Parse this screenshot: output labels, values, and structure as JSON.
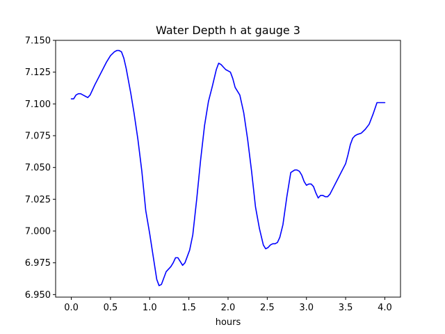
{
  "chart_data": {
    "type": "line",
    "title": "Water Depth h at gauge 3",
    "xlabel": "hours",
    "ylabel": "",
    "xlim": [
      -0.2,
      4.2
    ],
    "ylim": [
      6.948,
      7.15
    ],
    "x_ticks": [
      0.0,
      0.5,
      1.0,
      1.5,
      2.0,
      2.5,
      3.0,
      3.5,
      4.0
    ],
    "x_tick_labels": [
      "0.0",
      "0.5",
      "1.0",
      "1.5",
      "2.0",
      "2.5",
      "3.0",
      "3.5",
      "4.0"
    ],
    "y_ticks": [
      6.95,
      6.975,
      7.0,
      7.025,
      7.05,
      7.075,
      7.1,
      7.125,
      7.15
    ],
    "y_tick_labels": [
      "6.950",
      "6.975",
      "7.000",
      "7.025",
      "7.050",
      "7.075",
      "7.100",
      "7.125",
      "7.150"
    ],
    "grid": false,
    "series": [
      {
        "color": "#0000ff",
        "x": [
          0.0,
          0.03,
          0.06,
          0.09,
          0.12,
          0.15,
          0.18,
          0.21,
          0.24,
          0.27,
          0.3,
          0.35,
          0.4,
          0.45,
          0.5,
          0.55,
          0.58,
          0.61,
          0.64,
          0.67,
          0.7,
          0.73,
          0.76,
          0.8,
          0.85,
          0.9,
          0.95,
          1.0,
          1.05,
          1.09,
          1.12,
          1.15,
          1.18,
          1.21,
          1.24,
          1.27,
          1.3,
          1.33,
          1.36,
          1.39,
          1.42,
          1.45,
          1.48,
          1.51,
          1.55,
          1.6,
          1.65,
          1.7,
          1.75,
          1.8,
          1.85,
          1.88,
          1.91,
          1.94,
          1.97,
          2.0,
          2.03,
          2.06,
          2.09,
          2.12,
          2.15,
          2.2,
          2.25,
          2.3,
          2.35,
          2.4,
          2.45,
          2.48,
          2.51,
          2.54,
          2.57,
          2.6,
          2.63,
          2.66,
          2.7,
          2.75,
          2.8,
          2.85,
          2.88,
          2.91,
          2.94,
          2.97,
          3.0,
          3.03,
          3.06,
          3.09,
          3.12,
          3.15,
          3.18,
          3.21,
          3.24,
          3.27,
          3.3,
          3.35,
          3.4,
          3.45,
          3.5,
          3.53,
          3.56,
          3.59,
          3.62,
          3.65,
          3.7,
          3.75,
          3.8,
          3.85,
          3.9,
          3.95,
          4.0
        ],
        "y": [
          7.104,
          7.104,
          7.107,
          7.108,
          7.108,
          7.107,
          7.106,
          7.105,
          7.107,
          7.111,
          7.115,
          7.121,
          7.127,
          7.133,
          7.138,
          7.141,
          7.142,
          7.142,
          7.141,
          7.136,
          7.128,
          7.118,
          7.108,
          7.093,
          7.072,
          7.047,
          7.016,
          6.998,
          6.978,
          6.962,
          6.957,
          6.958,
          6.963,
          6.968,
          6.97,
          6.972,
          6.975,
          6.979,
          6.979,
          6.976,
          6.973,
          6.975,
          6.98,
          6.985,
          6.997,
          7.025,
          7.056,
          7.083,
          7.102,
          7.114,
          7.127,
          7.132,
          7.131,
          7.129,
          7.127,
          7.126,
          7.125,
          7.12,
          7.113,
          7.11,
          7.107,
          7.093,
          7.072,
          7.047,
          7.019,
          7.002,
          6.989,
          6.986,
          6.987,
          6.989,
          6.99,
          6.99,
          6.991,
          6.995,
          7.005,
          7.027,
          7.046,
          7.048,
          7.048,
          7.047,
          7.044,
          7.039,
          7.036,
          7.037,
          7.037,
          7.035,
          7.03,
          7.026,
          7.028,
          7.028,
          7.027,
          7.027,
          7.029,
          7.035,
          7.041,
          7.047,
          7.053,
          7.06,
          7.068,
          7.073,
          7.075,
          7.076,
          7.077,
          7.08,
          7.084,
          7.092,
          7.101,
          7.101,
          7.101
        ]
      }
    ]
  }
}
